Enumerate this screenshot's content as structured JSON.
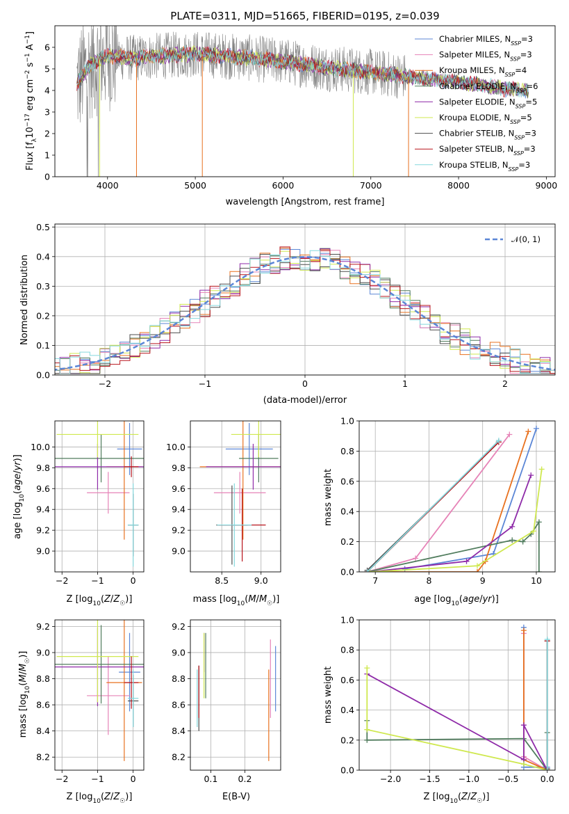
{
  "colors": {
    "Chabrier MILES": "#5b86d6",
    "Salpeter MILES": "#e683b7",
    "Kroupa MILES": "#e8711f",
    "Chabrier ELODIE": "#507c5d",
    "Salpeter ELODIE": "#8e2aa8",
    "Kroupa ELODIE": "#cfe84f",
    "Chabrier STELIB": "#4d4d4d",
    "Salpeter STELIB": "#b8141c",
    "Kroupa STELIB": "#84d8dd",
    "data": "#808080",
    "normal": "#5b86d6",
    "grid": "#b0b0b0"
  },
  "chart_data": [
    {
      "id": "spectrum",
      "type": "line",
      "title": "PLATE=0311, MJD=51665, FIBERID=0195, z=0.039",
      "xlabel": "wavelength [Angstrom, rest frame]",
      "ylabel": "Flux [f_λ10^-17 erg cm^-2 s^-1 A^-1]",
      "xlim": [
        3400,
        9100
      ],
      "ylim": [
        0,
        7
      ],
      "xticks": [
        4000,
        5000,
        6000,
        7000,
        8000,
        9000
      ],
      "yticks": [
        0,
        1,
        2,
        3,
        4,
        5,
        6
      ],
      "grid": false,
      "legend_position": "right",
      "legend": [
        {
          "name": "Chabrier MILES",
          "nssp": "3"
        },
        {
          "name": "Salpeter MILES",
          "nssp": "3"
        },
        {
          "name": "Kroupa MILES",
          "nssp": "4"
        },
        {
          "name": "Chabrier ELODIE",
          "nssp": "6"
        },
        {
          "name": "Salpeter ELODIE",
          "nssp": "5"
        },
        {
          "name": "Kroupa ELODIE",
          "nssp": "5"
        },
        {
          "name": "Chabrier STELIB",
          "nssp": "3"
        },
        {
          "name": "Salpeter STELIB",
          "nssp": "3"
        },
        {
          "name": "Kroupa STELIB",
          "nssp": "3"
        }
      ],
      "continuum": [
        [
          3650,
          4.3
        ],
        [
          3800,
          5.2
        ],
        [
          4000,
          5.6
        ],
        [
          4300,
          5.5
        ],
        [
          4600,
          5.6
        ],
        [
          5000,
          5.7
        ],
        [
          5500,
          5.55
        ],
        [
          6000,
          5.35
        ],
        [
          6500,
          5.05
        ],
        [
          7000,
          4.85
        ],
        [
          7500,
          4.6
        ],
        [
          8000,
          4.4
        ],
        [
          8500,
          4.1
        ],
        [
          8800,
          4.0
        ]
      ]
    },
    {
      "id": "residuals",
      "type": "line",
      "xlabel": "(data-model)/error",
      "ylabel": "Normed distribution",
      "xlim": [
        -2.5,
        2.5
      ],
      "ylim": [
        0,
        0.51
      ],
      "xticks": [
        -2,
        -1,
        0,
        1,
        2
      ],
      "yticks": [
        0.0,
        0.1,
        0.2,
        0.3,
        0.4,
        0.5
      ],
      "grid": true,
      "legend_position": "top-right",
      "legend": [
        "𝒩(0, 1)"
      ]
    },
    {
      "id": "age_vs_Z",
      "type": "scatter",
      "xlabel": "Z [log10(Z/Z☉)]",
      "ylabel": "age  [log10(age/yr)]",
      "xlim": [
        -2.2,
        0.3
      ],
      "ylim": [
        8.8,
        10.25
      ],
      "xticks": [
        -2,
        -1,
        0
      ],
      "yticks": [
        9.0,
        9.2,
        9.4,
        9.6,
        9.8,
        10.0
      ],
      "grid": true,
      "points": [
        {
          "model": "Chabrier MILES",
          "x": -0.1,
          "xerr": 0.35,
          "y": 9.98,
          "yerr": 0.25
        },
        {
          "model": "Salpeter MILES",
          "x": -0.7,
          "xerr": 0.6,
          "y": 9.56,
          "yerr": 0.2
        },
        {
          "model": "Kroupa MILES",
          "x": -0.25,
          "xerr": 0.5,
          "y": 9.81,
          "yerr": 0.7
        },
        {
          "model": "Chabrier ELODIE",
          "x": -0.9,
          "xerr": 1.3,
          "y": 9.89,
          "yerr": 0.23
        },
        {
          "model": "Salpeter ELODIE",
          "x": -1.0,
          "xerr": 1.3,
          "y": 9.81,
          "yerr": 0.22
        },
        {
          "model": "Kroupa ELODIE",
          "x": -1.0,
          "xerr": 1.15,
          "y": 10.12,
          "yerr": 0.22
        },
        {
          "model": "Chabrier STELIB",
          "x": 0.0,
          "xerr": 0.15,
          "y": 9.25,
          "yerr": 0.3
        },
        {
          "model": "Salpeter STELIB",
          "x": -0.05,
          "xerr": 0.2,
          "y": 9.81,
          "yerr": 0.1
        },
        {
          "model": "Kroupa STELIB",
          "x": 0.0,
          "xerr": 0.15,
          "y": 9.25,
          "yerr": 0.4
        }
      ]
    },
    {
      "id": "age_vs_mass",
      "type": "scatter",
      "xlabel": "mass [log10(M/M☉)]",
      "xlim": [
        8.1,
        9.25
      ],
      "ylim": [
        8.8,
        10.25
      ],
      "xticks": [
        8.5,
        9.0
      ],
      "yticks": [
        9.0,
        9.2,
        9.4,
        9.6,
        9.8,
        10.0
      ],
      "grid": true,
      "points": [
        {
          "model": "Chabrier MILES",
          "x": 8.85,
          "xerr": 0.3,
          "y": 9.98,
          "yerr": 0.25
        },
        {
          "model": "Salpeter MILES",
          "x": 8.73,
          "xerr": 0.33,
          "y": 9.56,
          "yerr": 0.2
        },
        {
          "model": "Kroupa MILES",
          "x": 8.77,
          "xerr": 0.55,
          "y": 9.81,
          "yerr": 0.7
        },
        {
          "model": "Chabrier ELODIE",
          "x": 8.97,
          "xerr": 0.25,
          "y": 9.89,
          "yerr": 0.23
        },
        {
          "model": "Salpeter ELODIE",
          "x": 8.9,
          "xerr": 0.6,
          "y": 9.81,
          "yerr": 0.22
        },
        {
          "model": "Kroupa ELODIE",
          "x": 8.97,
          "xerr": 0.35,
          "y": 10.12,
          "yerr": 0.22
        },
        {
          "model": "Chabrier STELIB",
          "x": 8.63,
          "xerr": 0.2,
          "y": 9.25,
          "yerr": 0.38
        },
        {
          "model": "Salpeter STELIB",
          "x": 8.76,
          "xerr": 0.3,
          "y": 9.25,
          "yerr": 0.35
        },
        {
          "model": "Kroupa STELIB",
          "x": 8.66,
          "xerr": 0.22,
          "y": 9.25,
          "yerr": 0.4
        }
      ]
    },
    {
      "id": "mass_weight_vs_age",
      "type": "line",
      "xlabel": "age  [log10(age/yr)]",
      "ylabel": "mass weight",
      "xlim": [
        6.7,
        10.35
      ],
      "ylim": [
        0,
        1.0
      ],
      "xticks": [
        7,
        8,
        9,
        10
      ],
      "yticks": [
        0.0,
        0.2,
        0.4,
        0.6,
        0.8,
        1.0
      ],
      "grid": true,
      "series": [
        {
          "model": "Chabrier MILES",
          "x": [
            7.55,
            9.2,
            10.0
          ],
          "y": [
            0.02,
            0.12,
            0.95
          ]
        },
        {
          "model": "Salpeter MILES",
          "x": [
            6.85,
            7.75,
            9.5
          ],
          "y": [
            0.0,
            0.09,
            0.91
          ]
        },
        {
          "model": "Kroupa MILES",
          "x": [
            6.85,
            8.9,
            9.05,
            9.85
          ],
          "y": [
            0.0,
            0.0,
            0.07,
            0.93
          ]
        },
        {
          "model": "Chabrier ELODIE",
          "x": [
            6.85,
            9.55,
            9.75,
            9.9,
            10.05,
            10.05
          ],
          "y": [
            0.0,
            0.21,
            0.2,
            0.25,
            0.33,
            0.0
          ]
        },
        {
          "model": "Salpeter ELODIE",
          "x": [
            6.9,
            8.7,
            9.55,
            9.9
          ],
          "y": [
            0.0,
            0.07,
            0.3,
            0.64
          ]
        },
        {
          "model": "Kroupa ELODIE",
          "x": [
            6.9,
            8.9,
            9.95,
            10.1
          ],
          "y": [
            0.0,
            0.04,
            0.27,
            0.68
          ]
        },
        {
          "model": "Chabrier STELIB",
          "x": [
            6.85,
            9.3
          ],
          "y": [
            0.01,
            0.86
          ]
        },
        {
          "model": "Salpeter STELIB",
          "x": [
            6.85,
            9.3
          ],
          "y": [
            0.0,
            0.86
          ]
        },
        {
          "model": "Kroupa STELIB",
          "x": [
            6.85,
            9.3
          ],
          "y": [
            0.0,
            0.87
          ]
        }
      ]
    },
    {
      "id": "mass_vs_Z",
      "type": "scatter",
      "xlabel": "Z [log10(Z/Z☉)]",
      "ylabel": "mass [log10(M/M☉)]",
      "xlim": [
        -2.2,
        0.3
      ],
      "ylim": [
        8.1,
        9.25
      ],
      "xticks": [
        -2,
        -1,
        0
      ],
      "yticks": [
        8.2,
        8.4,
        8.6,
        8.8,
        9.0,
        9.2
      ],
      "grid": true,
      "points": [
        {
          "model": "Chabrier MILES",
          "x": -0.1,
          "xerr": 0.3,
          "y": 8.85,
          "yerr": 0.3
        },
        {
          "model": "Salpeter MILES",
          "x": -0.7,
          "xerr": 0.6,
          "y": 8.67,
          "yerr": 0.3
        },
        {
          "model": "Kroupa MILES",
          "x": -0.25,
          "xerr": 0.5,
          "y": 8.77,
          "yerr": 0.6
        },
        {
          "model": "Chabrier ELODIE",
          "x": -0.9,
          "xerr": 1.3,
          "y": 8.91,
          "yerr": 0.3
        },
        {
          "model": "Salpeter ELODIE",
          "x": -1.0,
          "xerr": 1.3,
          "y": 8.89,
          "yerr": 0.3
        },
        {
          "model": "Kroupa ELODIE",
          "x": -1.0,
          "xerr": 1.15,
          "y": 8.97,
          "yerr": 0.35
        },
        {
          "model": "Chabrier STELIB",
          "x": 0.0,
          "xerr": 0.15,
          "y": 8.63,
          "yerr": 0.2
        },
        {
          "model": "Salpeter STELIB",
          "x": -0.05,
          "xerr": 0.2,
          "y": 8.77,
          "yerr": 0.2
        },
        {
          "model": "Kroupa STELIB",
          "x": 0.0,
          "xerr": 0.15,
          "y": 8.65,
          "yerr": 0.22
        }
      ]
    },
    {
      "id": "mass_vs_EBV",
      "type": "scatter",
      "xlabel": "E(B-V)",
      "xlim": [
        0.04,
        0.305
      ],
      "ylim": [
        8.1,
        9.25
      ],
      "xticks": [
        0.1,
        0.2
      ],
      "yticks": [
        8.2,
        8.4,
        8.6,
        8.8,
        9.0,
        9.2
      ],
      "grid": true,
      "points": [
        {
          "model": "Chabrier MILES",
          "x": 0.29,
          "yerr": 0.25,
          "y": 8.8
        },
        {
          "model": "Salpeter MILES",
          "x": 0.275,
          "yerr": 0.3,
          "y": 8.8
        },
        {
          "model": "Kroupa MILES",
          "x": 0.27,
          "yerr": 0.35,
          "y": 8.52
        },
        {
          "model": "Chabrier ELODIE",
          "x": 0.085,
          "yerr": 0.25,
          "y": 8.9
        },
        {
          "model": "Salpeter ELODIE",
          "x": 0.08,
          "yerr": 0.15,
          "y": 9.0
        },
        {
          "model": "Kroupa ELODIE",
          "x": 0.08,
          "yerr": 0.25,
          "y": 8.9
        },
        {
          "model": "Chabrier STELIB",
          "x": 0.065,
          "yerr": 0.25,
          "y": 8.65
        },
        {
          "model": "Salpeter STELIB",
          "x": 0.065,
          "yerr": 0.2,
          "y": 8.7
        },
        {
          "model": "Kroupa STELIB",
          "x": 0.06,
          "yerr": 0.22,
          "y": 8.65
        }
      ]
    },
    {
      "id": "mass_weight_vs_Z",
      "type": "line",
      "xlabel": "Z [log10(Z/Z☉)]",
      "ylabel": "mass weight",
      "xlim": [
        -2.4,
        0.1
      ],
      "ylim": [
        0,
        1.0
      ],
      "xticks": [
        -2.0,
        -1.5,
        -1.0,
        -0.5,
        0.0
      ],
      "yticks": [
        0.0,
        0.2,
        0.4,
        0.6,
        0.8,
        1.0
      ],
      "grid": true,
      "series": [
        {
          "model": "Chabrier MILES",
          "x": [
            -0.3,
            -0.3,
            0.0
          ],
          "y": [
            0.95,
            0.02,
            0.02
          ]
        },
        {
          "model": "Salpeter MILES",
          "x": [
            -0.3,
            -0.3,
            0.0
          ],
          "y": [
            0.91,
            0.09,
            0.0
          ]
        },
        {
          "model": "Kroupa MILES",
          "x": [
            -0.3,
            -0.3,
            0.0,
            0.0
          ],
          "y": [
            0.93,
            0.07,
            0.0,
            0.0
          ]
        },
        {
          "model": "Chabrier ELODIE",
          "x": [
            -2.3,
            -2.3,
            -0.3,
            0.0,
            0.0
          ],
          "y": [
            0.33,
            0.2,
            0.21,
            0.0,
            0.25
          ]
        },
        {
          "model": "Salpeter ELODIE",
          "x": [
            -2.3,
            -0.3,
            -0.3,
            0.0
          ],
          "y": [
            0.64,
            0.07,
            0.3,
            0.0
          ]
        },
        {
          "model": "Kroupa ELODIE",
          "x": [
            -2.3,
            -2.3,
            -0.3,
            0.0
          ],
          "y": [
            0.68,
            0.27,
            0.04,
            0.0
          ]
        },
        {
          "model": "Chabrier STELIB",
          "x": [
            0.0,
            0.0
          ],
          "y": [
            0.01,
            0.86
          ]
        },
        {
          "model": "Salpeter STELIB",
          "x": [
            0.0,
            0.0
          ],
          "y": [
            0.0,
            0.86
          ]
        },
        {
          "model": "Kroupa STELIB",
          "x": [
            0.0,
            0.0
          ],
          "y": [
            0.0,
            0.87
          ]
        }
      ]
    }
  ]
}
